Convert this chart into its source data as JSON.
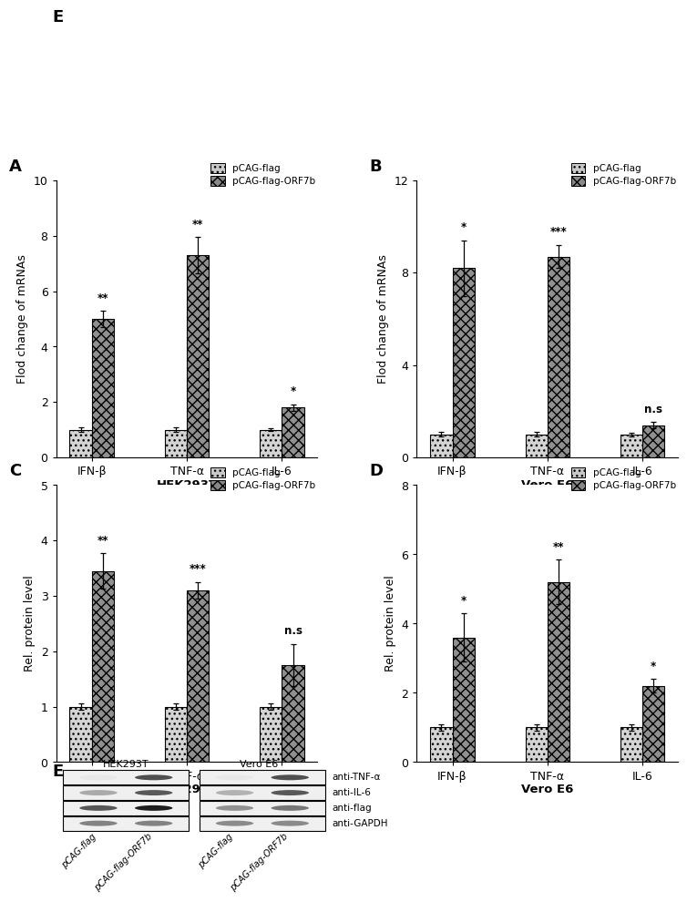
{
  "panel_A": {
    "title": "A",
    "xlabel": "HEK293T",
    "ylabel": "Flod change of mRNAs",
    "ylim": [
      0,
      10
    ],
    "yticks": [
      0,
      2,
      4,
      6,
      8,
      10
    ],
    "groups": [
      "IFN-β",
      "TNF-α",
      "IL-6"
    ],
    "ctrl_vals": [
      1.0,
      1.0,
      1.0
    ],
    "treat_vals": [
      5.0,
      7.3,
      1.8
    ],
    "ctrl_errs": [
      0.08,
      0.08,
      0.06
    ],
    "treat_errs": [
      0.28,
      0.65,
      0.12
    ],
    "sig_labels": [
      "**",
      "**",
      "*"
    ]
  },
  "panel_B": {
    "title": "B",
    "xlabel": "Vero E6",
    "ylabel": "Flod change of mRNAs",
    "ylim": [
      0,
      12
    ],
    "yticks": [
      0,
      4,
      8,
      12
    ],
    "groups": [
      "IFN-β",
      "TNF-α",
      "IL-6"
    ],
    "ctrl_vals": [
      1.0,
      1.0,
      1.0
    ],
    "treat_vals": [
      8.2,
      8.7,
      1.4
    ],
    "ctrl_errs": [
      0.1,
      0.1,
      0.08
    ],
    "treat_errs": [
      1.2,
      0.5,
      0.12
    ],
    "sig_labels": [
      "*",
      "***",
      "n.s"
    ]
  },
  "panel_C": {
    "title": "C",
    "xlabel": "HEK293T",
    "ylabel": "Rel. protein level",
    "ylim": [
      0,
      5
    ],
    "yticks": [
      0,
      1,
      2,
      3,
      4,
      5
    ],
    "groups": [
      "IFN-β",
      "TNF-α",
      "IL-6"
    ],
    "ctrl_vals": [
      1.0,
      1.0,
      1.0
    ],
    "treat_vals": [
      3.45,
      3.1,
      1.75
    ],
    "ctrl_errs": [
      0.06,
      0.06,
      0.06
    ],
    "treat_errs": [
      0.32,
      0.15,
      0.38
    ],
    "sig_labels": [
      "**",
      "***",
      "n.s"
    ]
  },
  "panel_D": {
    "title": "D",
    "xlabel": "Vero E6",
    "ylabel": "Rel. protein level",
    "ylim": [
      0,
      8
    ],
    "yticks": [
      0,
      2,
      4,
      6,
      8
    ],
    "groups": [
      "IFN-β",
      "TNF-α",
      "IL-6"
    ],
    "ctrl_vals": [
      1.0,
      1.0,
      1.0
    ],
    "treat_vals": [
      3.6,
      5.2,
      2.2
    ],
    "ctrl_errs": [
      0.1,
      0.1,
      0.1
    ],
    "treat_errs": [
      0.7,
      0.65,
      0.2
    ],
    "sig_labels": [
      "*",
      "**",
      "*"
    ]
  },
  "legend_labels": [
    "pCAG-flag",
    "pCAG-flag-ORF7b"
  ],
  "bar_width": 0.28,
  "panel_E": {
    "title": "E",
    "cell_lines": [
      "HEK293T",
      "Vero E6"
    ],
    "antibodies": [
      "anti-TNF-α",
      "anti-IL-6",
      "anti-flag",
      "anti-GAPDH"
    ],
    "xlabels": [
      "pCAG-flag",
      "pCAG-flag-ORF7b",
      "pCAG-flag",
      "pCAG-flag-ORF7b"
    ]
  }
}
